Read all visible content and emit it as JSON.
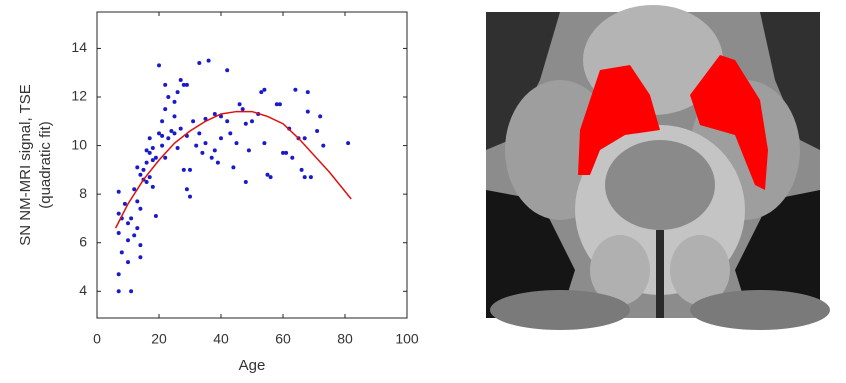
{
  "chart_data": {
    "type": "scatter",
    "xlabel": "Age",
    "ylabel": [
      "SN NM-MRI signal, TSE",
      "(quadratic fit)"
    ],
    "xlim": [
      0,
      100
    ],
    "xticks": [
      0,
      20,
      40,
      60,
      80,
      100
    ],
    "ylim": [
      2.9,
      15.5
    ],
    "yticks": [
      4,
      6,
      8,
      10,
      12,
      14
    ],
    "scatter": {
      "color": "#1a1acc",
      "x": [
        7,
        7,
        7,
        7,
        7,
        8,
        8,
        9,
        10,
        10,
        10,
        11,
        11,
        12,
        12,
        13,
        13,
        13,
        14,
        14,
        14,
        14,
        15,
        15,
        16,
        16,
        16,
        17,
        17,
        17,
        18,
        18,
        18,
        19,
        19,
        20,
        20,
        21,
        21,
        21,
        22,
        22,
        22,
        23,
        23,
        24,
        25,
        25,
        25,
        26,
        26,
        27,
        27,
        28,
        28,
        29,
        29,
        29,
        30,
        30,
        31,
        32,
        33,
        33,
        34,
        35,
        35,
        36,
        37,
        38,
        38,
        39,
        40,
        40,
        42,
        42,
        43,
        44,
        45,
        46,
        47,
        48,
        48,
        49,
        50,
        52,
        53,
        54,
        54,
        55,
        56,
        58,
        59,
        60,
        61,
        62,
        63,
        64,
        65,
        66,
        67,
        67,
        68,
        68,
        69,
        71,
        72,
        73,
        81
      ],
      "values": [
        4.0,
        4.7,
        6.4,
        7.2,
        8.1,
        5.6,
        7.0,
        7.6,
        5.2,
        6.1,
        6.8,
        4.0,
        7.0,
        6.3,
        8.2,
        6.6,
        7.7,
        9.1,
        5.4,
        5.9,
        7.4,
        8.8,
        8.6,
        9.0,
        8.5,
        9.3,
        9.8,
        8.7,
        9.7,
        10.3,
        8.3,
        9.4,
        9.9,
        7.1,
        9.5,
        10.5,
        13.3,
        10.0,
        10.4,
        11.0,
        9.5,
        11.5,
        12.5,
        10.3,
        12.0,
        10.6,
        10.5,
        11.2,
        11.8,
        9.9,
        12.2,
        10.7,
        12.7,
        9.0,
        12.5,
        8.2,
        10.4,
        12.5,
        7.9,
        9.0,
        11.0,
        10.0,
        10.5,
        13.4,
        9.7,
        10.1,
        11.1,
        13.5,
        9.5,
        9.8,
        11.3,
        9.3,
        10.3,
        11.2,
        11.0,
        13.1,
        10.5,
        9.1,
        10.1,
        11.7,
        11.5,
        8.5,
        10.9,
        9.8,
        11.0,
        11.3,
        12.2,
        10.1,
        12.3,
        8.8,
        8.7,
        11.7,
        11.7,
        9.7,
        9.7,
        10.7,
        9.5,
        12.3,
        10.3,
        9.0,
        8.7,
        10.3,
        11.4,
        12.2,
        8.7,
        10.6,
        11.2,
        10.0,
        10.1
      ]
    },
    "fit": {
      "color": "#e01010",
      "x": [
        6,
        10,
        15,
        20,
        25,
        30,
        35,
        40,
        45,
        50,
        55,
        60,
        65,
        70,
        75,
        82
      ],
      "values": [
        6.6,
        7.6,
        8.6,
        9.4,
        10.1,
        10.6,
        11.0,
        11.3,
        11.4,
        11.4,
        11.2,
        10.9,
        10.3,
        9.6,
        8.9,
        7.8
      ]
    }
  }
}
